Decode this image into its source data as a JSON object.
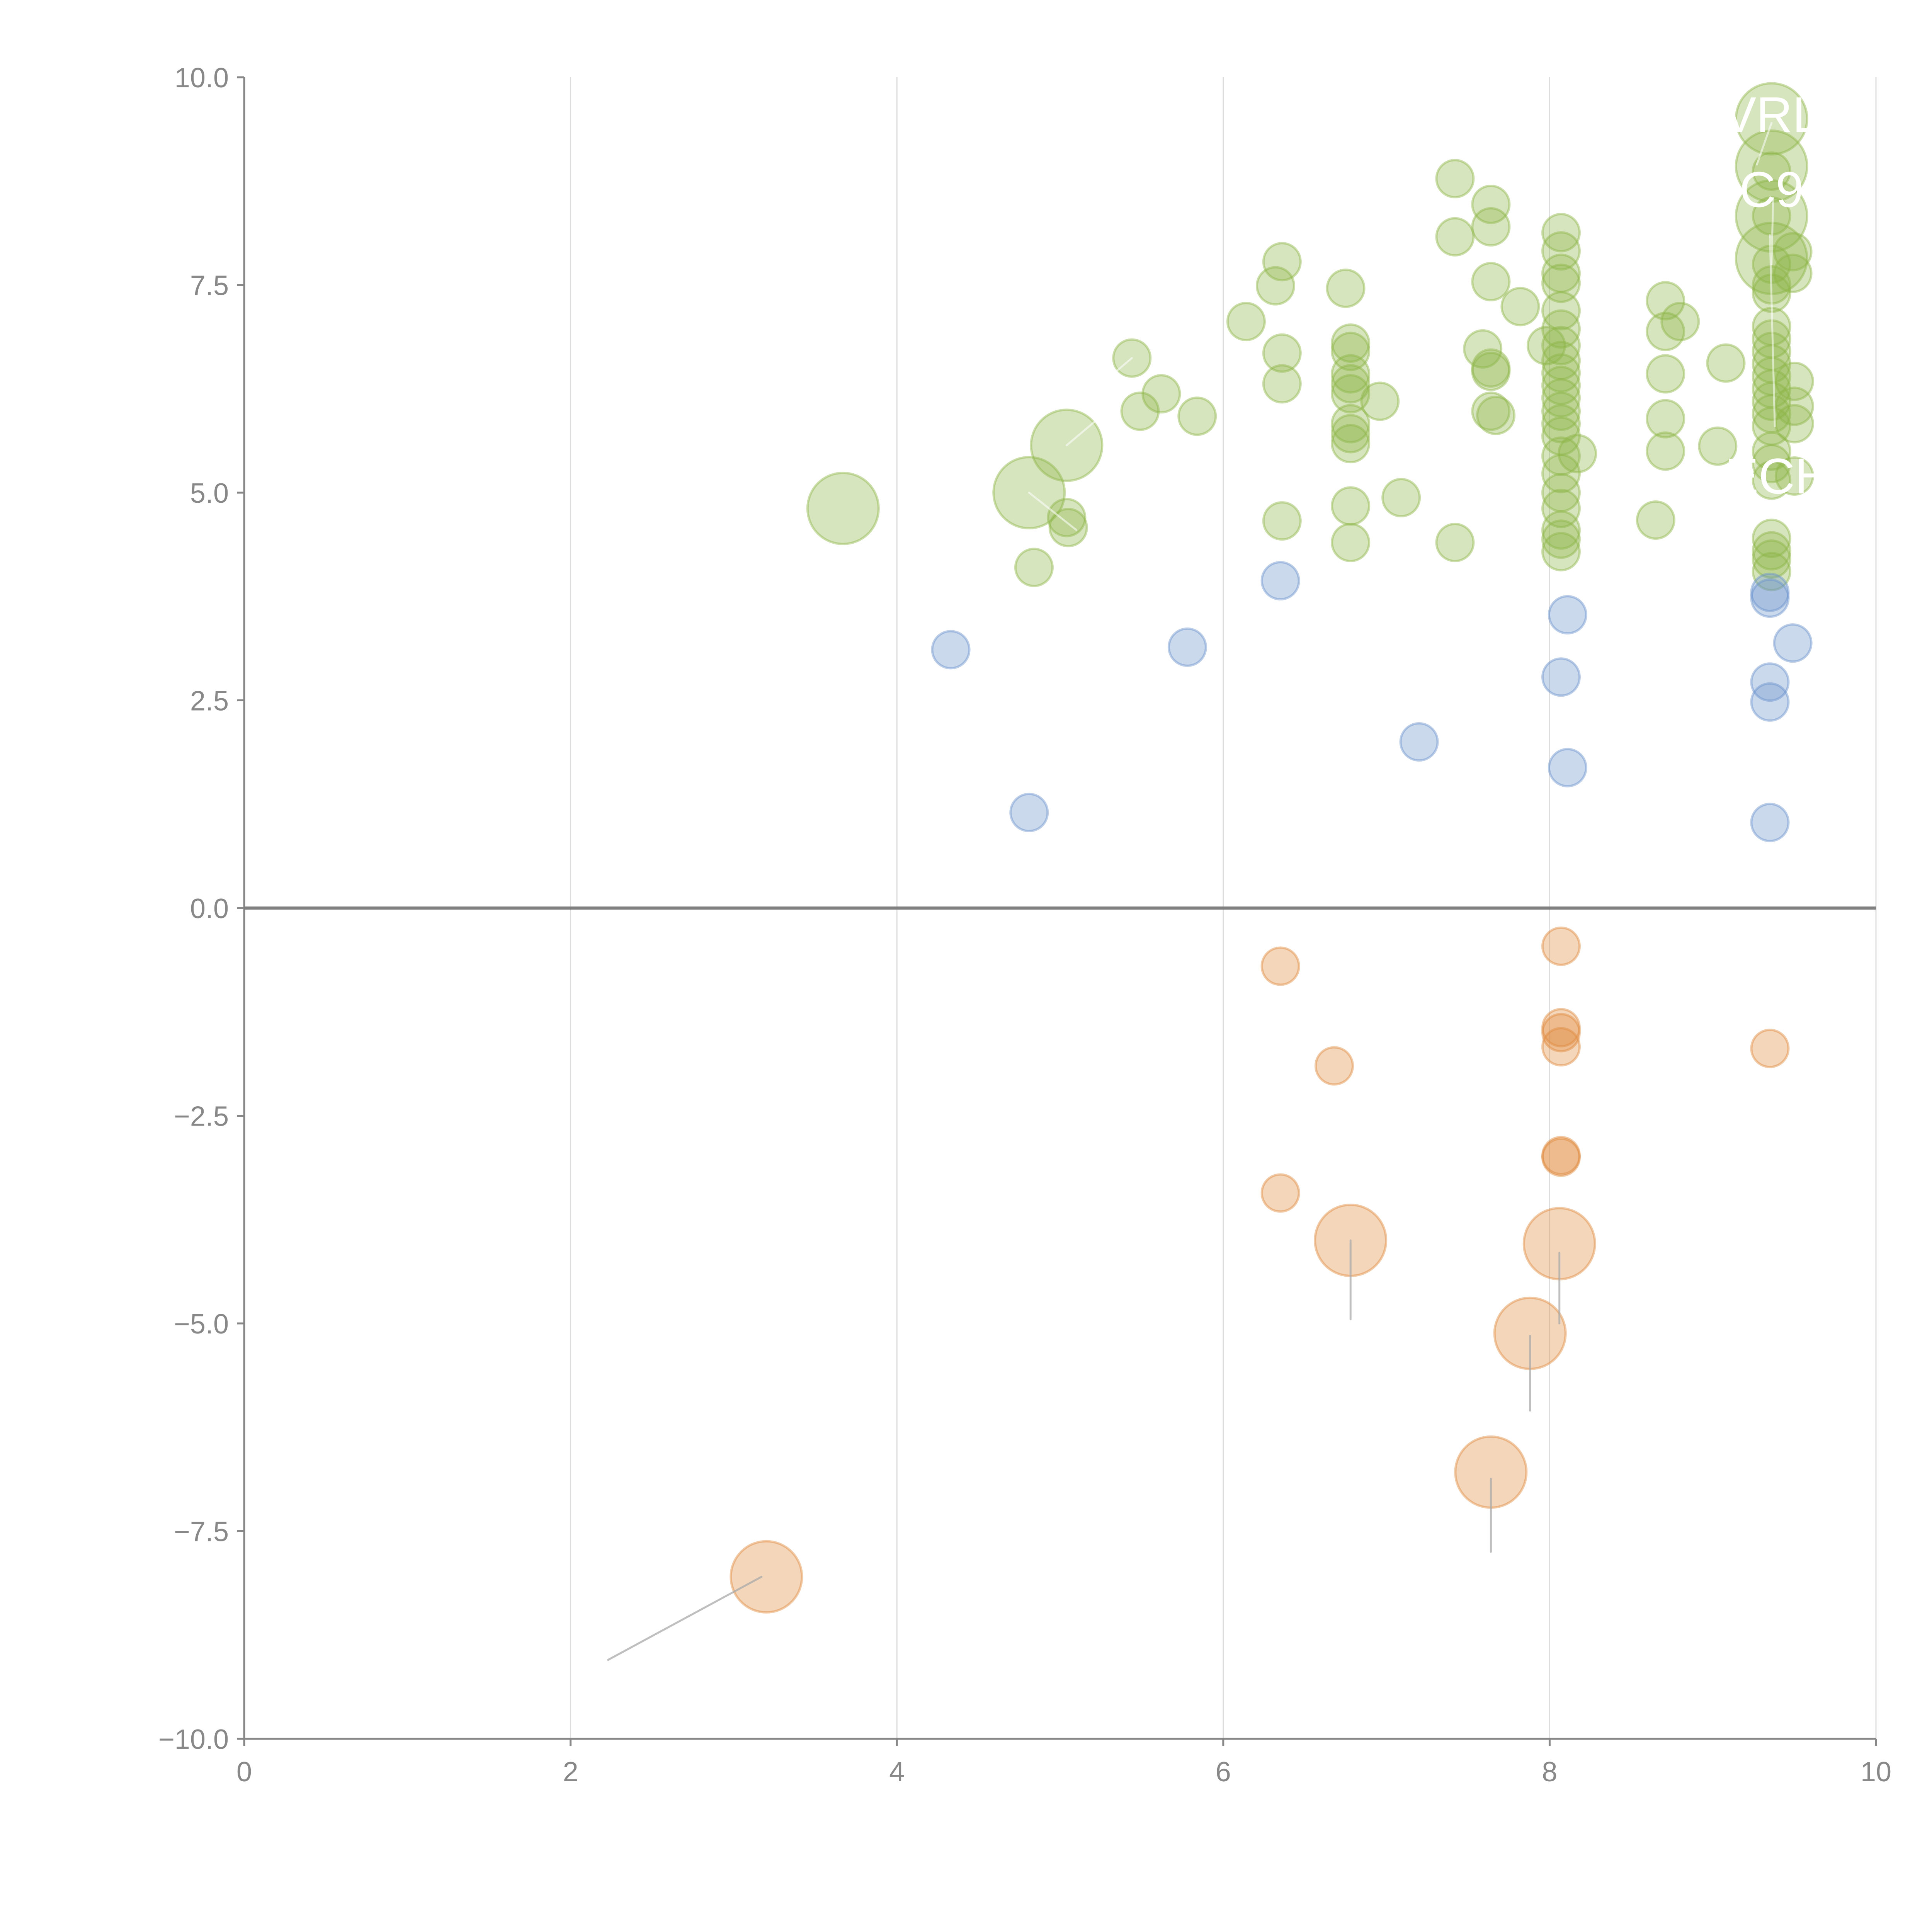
{
  "chart_data": {
    "type": "scatter",
    "subtype": "bubble",
    "title": "",
    "xlabel": "",
    "ylabel": "",
    "xlim": [
      0,
      10
    ],
    "ylim": [
      -10,
      10
    ],
    "x_ticks": [
      "0",
      "2",
      "4",
      "6",
      "8",
      "10"
    ],
    "x_tick_values": [
      0,
      2,
      4,
      6,
      8,
      10
    ],
    "y_ticks": [
      "10.0",
      "7.5",
      "5.0",
      "2.5",
      "0.0",
      "−2.5",
      "−5.0",
      "−7.5",
      "−10.0"
    ],
    "y_tick_values": [
      10,
      7.5,
      5,
      2.5,
      0,
      -2.5,
      -5,
      -7.5,
      -10
    ],
    "grid": {
      "vertical": true,
      "horizontal": false
    },
    "zero_line": true,
    "legend": "none",
    "colors": {
      "green": "#8DB548",
      "blue": "#6A93CC",
      "orange": "#E08A3C",
      "axis": "#888888",
      "grid": "#DDDDDD",
      "zero_line": "#808080",
      "leader_gray": "#AAAAAA",
      "label": "#FFFFFF"
    },
    "series": [
      {
        "name": "green",
        "color": "#8DB548",
        "points": [
          {
            "x": 3.67,
            "y": 4.81,
            "size": 3
          },
          {
            "x": 4.81,
            "y": 5.0,
            "size": 3
          },
          {
            "x": 5.04,
            "y": 5.57,
            "size": 3
          },
          {
            "x": 4.84,
            "y": 4.1,
            "size": 1
          },
          {
            "x": 5.04,
            "y": 4.7,
            "size": 1
          },
          {
            "x": 5.05,
            "y": 4.58,
            "size": 1
          },
          {
            "x": 5.44,
            "y": 6.62,
            "size": 1
          },
          {
            "x": 5.49,
            "y": 5.98,
            "size": 1
          },
          {
            "x": 5.62,
            "y": 6.19,
            "size": 1
          },
          {
            "x": 5.84,
            "y": 5.92,
            "size": 1
          },
          {
            "x": 6.14,
            "y": 7.06,
            "size": 1
          },
          {
            "x": 6.32,
            "y": 7.49,
            "size": 1
          },
          {
            "x": 6.36,
            "y": 7.78,
            "size": 1
          },
          {
            "x": 6.36,
            "y": 6.68,
            "size": 1
          },
          {
            "x": 6.36,
            "y": 6.31,
            "size": 1
          },
          {
            "x": 6.36,
            "y": 4.66,
            "size": 1
          },
          {
            "x": 6.75,
            "y": 7.46,
            "size": 1
          },
          {
            "x": 6.78,
            "y": 6.8,
            "size": 1
          },
          {
            "x": 6.78,
            "y": 6.7,
            "size": 1
          },
          {
            "x": 6.78,
            "y": 6.43,
            "size": 1
          },
          {
            "x": 6.78,
            "y": 6.31,
            "size": 1
          },
          {
            "x": 6.78,
            "y": 6.19,
            "size": 1
          },
          {
            "x": 6.78,
            "y": 5.83,
            "size": 1
          },
          {
            "x": 6.78,
            "y": 5.71,
            "size": 1
          },
          {
            "x": 6.78,
            "y": 5.59,
            "size": 1
          },
          {
            "x": 6.78,
            "y": 4.84,
            "size": 1
          },
          {
            "x": 6.78,
            "y": 4.4,
            "size": 1
          },
          {
            "x": 6.96,
            "y": 6.1,
            "size": 1
          },
          {
            "x": 7.09,
            "y": 4.94,
            "size": 1
          },
          {
            "x": 7.42,
            "y": 8.78,
            "size": 1
          },
          {
            "x": 7.42,
            "y": 8.08,
            "size": 1
          },
          {
            "x": 7.42,
            "y": 4.4,
            "size": 1
          },
          {
            "x": 7.64,
            "y": 8.47,
            "size": 1
          },
          {
            "x": 7.64,
            "y": 8.2,
            "size": 1
          },
          {
            "x": 7.64,
            "y": 7.54,
            "size": 1
          },
          {
            "x": 7.59,
            "y": 6.73,
            "size": 1
          },
          {
            "x": 7.64,
            "y": 6.5,
            "size": 1
          },
          {
            "x": 7.64,
            "y": 6.46,
            "size": 1
          },
          {
            "x": 7.64,
            "y": 5.98,
            "size": 1
          },
          {
            "x": 7.67,
            "y": 5.93,
            "size": 1
          },
          {
            "x": 7.82,
            "y": 7.24,
            "size": 1
          },
          {
            "x": 7.98,
            "y": 6.77,
            "size": 1
          },
          {
            "x": 8.07,
            "y": 8.13,
            "size": 1
          },
          {
            "x": 8.07,
            "y": 7.91,
            "size": 1
          },
          {
            "x": 8.07,
            "y": 7.64,
            "size": 1
          },
          {
            "x": 8.07,
            "y": 7.52,
            "size": 1
          },
          {
            "x": 8.07,
            "y": 7.19,
            "size": 1
          },
          {
            "x": 8.07,
            "y": 6.97,
            "size": 1
          },
          {
            "x": 8.07,
            "y": 6.77,
            "size": 1
          },
          {
            "x": 8.07,
            "y": 6.59,
            "size": 1
          },
          {
            "x": 8.07,
            "y": 6.44,
            "size": 1
          },
          {
            "x": 8.07,
            "y": 6.29,
            "size": 1
          },
          {
            "x": 8.07,
            "y": 6.14,
            "size": 1
          },
          {
            "x": 8.07,
            "y": 5.98,
            "size": 1
          },
          {
            "x": 8.07,
            "y": 5.83,
            "size": 1
          },
          {
            "x": 8.07,
            "y": 5.68,
            "size": 1
          },
          {
            "x": 8.07,
            "y": 5.44,
            "size": 1
          },
          {
            "x": 8.07,
            "y": 5.23,
            "size": 1
          },
          {
            "x": 8.07,
            "y": 5.0,
            "size": 1
          },
          {
            "x": 8.07,
            "y": 4.81,
            "size": 1
          },
          {
            "x": 8.07,
            "y": 4.55,
            "size": 1
          },
          {
            "x": 8.07,
            "y": 4.44,
            "size": 1
          },
          {
            "x": 8.07,
            "y": 4.29,
            "size": 1
          },
          {
            "x": 8.17,
            "y": 5.47,
            "size": 1
          },
          {
            "x": 8.65,
            "y": 4.67,
            "size": 1
          },
          {
            "x": 8.71,
            "y": 7.31,
            "size": 1
          },
          {
            "x": 8.71,
            "y": 6.94,
            "size": 1
          },
          {
            "x": 8.71,
            "y": 6.43,
            "size": 1
          },
          {
            "x": 8.71,
            "y": 5.89,
            "size": 1
          },
          {
            "x": 8.71,
            "y": 5.5,
            "size": 1
          },
          {
            "x": 8.8,
            "y": 7.06,
            "size": 1
          },
          {
            "x": 9.03,
            "y": 5.56,
            "size": 1
          },
          {
            "x": 9.08,
            "y": 6.56,
            "size": 1
          },
          {
            "x": 9.36,
            "y": 9.5,
            "size": 3
          },
          {
            "x": 9.36,
            "y": 8.93,
            "size": 3
          },
          {
            "x": 9.36,
            "y": 8.33,
            "size": 3
          },
          {
            "x": 9.36,
            "y": 7.82,
            "size": 3
          },
          {
            "x": 9.36,
            "y": 8.87,
            "size": 1
          },
          {
            "x": 9.36,
            "y": 8.33,
            "size": 1
          },
          {
            "x": 9.36,
            "y": 7.75,
            "size": 1
          },
          {
            "x": 9.36,
            "y": 7.5,
            "size": 1
          },
          {
            "x": 9.36,
            "y": 7.4,
            "size": 1
          },
          {
            "x": 9.36,
            "y": 7.0,
            "size": 1
          },
          {
            "x": 9.36,
            "y": 6.85,
            "size": 1
          },
          {
            "x": 9.36,
            "y": 6.7,
            "size": 1
          },
          {
            "x": 9.36,
            "y": 6.55,
            "size": 1
          },
          {
            "x": 9.36,
            "y": 6.4,
            "size": 1
          },
          {
            "x": 9.36,
            "y": 6.25,
            "size": 1
          },
          {
            "x": 9.36,
            "y": 6.1,
            "size": 1
          },
          {
            "x": 9.36,
            "y": 5.95,
            "size": 1
          },
          {
            "x": 9.36,
            "y": 5.8,
            "size": 1
          },
          {
            "x": 9.36,
            "y": 5.5,
            "size": 1
          },
          {
            "x": 9.36,
            "y": 5.35,
            "size": 1
          },
          {
            "x": 9.36,
            "y": 5.15,
            "size": 1
          },
          {
            "x": 9.36,
            "y": 4.45,
            "size": 1
          },
          {
            "x": 9.36,
            "y": 4.3,
            "size": 1
          },
          {
            "x": 9.36,
            "y": 4.2,
            "size": 1
          },
          {
            "x": 9.36,
            "y": 4.05,
            "size": 1
          },
          {
            "x": 9.49,
            "y": 7.9,
            "size": 1
          },
          {
            "x": 9.49,
            "y": 7.64,
            "size": 1
          },
          {
            "x": 9.5,
            "y": 6.34,
            "size": 1
          },
          {
            "x": 9.5,
            "y": 6.04,
            "size": 1
          },
          {
            "x": 9.5,
            "y": 5.83,
            "size": 1
          },
          {
            "x": 9.5,
            "y": 5.2,
            "size": 1
          }
        ]
      },
      {
        "name": "blue",
        "color": "#6A93CC",
        "points": [
          {
            "x": 4.33,
            "y": 3.11,
            "size": 1
          },
          {
            "x": 4.81,
            "y": 1.15,
            "size": 1
          },
          {
            "x": 5.78,
            "y": 3.14,
            "size": 1
          },
          {
            "x": 6.35,
            "y": 3.94,
            "size": 1
          },
          {
            "x": 7.2,
            "y": 2.0,
            "size": 1
          },
          {
            "x": 8.11,
            "y": 3.53,
            "size": 1
          },
          {
            "x": 8.07,
            "y": 2.78,
            "size": 1
          },
          {
            "x": 8.11,
            "y": 1.69,
            "size": 1
          },
          {
            "x": 9.35,
            "y": 3.8,
            "size": 1
          },
          {
            "x": 9.35,
            "y": 3.73,
            "size": 1
          },
          {
            "x": 9.49,
            "y": 3.19,
            "size": 1
          },
          {
            "x": 9.35,
            "y": 2.72,
            "size": 1
          },
          {
            "x": 9.35,
            "y": 2.48,
            "size": 1
          },
          {
            "x": 9.35,
            "y": 1.03,
            "size": 1
          }
        ]
      },
      {
        "name": "orange",
        "color": "#E08A3C",
        "points": [
          {
            "x": 6.35,
            "y": -0.7,
            "size": 1
          },
          {
            "x": 6.68,
            "y": -1.9,
            "size": 1
          },
          {
            "x": 6.35,
            "y": -3.43,
            "size": 1
          },
          {
            "x": 8.07,
            "y": -0.46,
            "size": 1
          },
          {
            "x": 8.07,
            "y": -1.44,
            "size": 1
          },
          {
            "x": 8.07,
            "y": -1.5,
            "size": 1
          },
          {
            "x": 8.07,
            "y": -1.67,
            "size": 1
          },
          {
            "x": 8.07,
            "y": -2.98,
            "size": 1
          },
          {
            "x": 8.07,
            "y": -3.0,
            "size": 1
          },
          {
            "x": 9.35,
            "y": -1.69,
            "size": 1
          },
          {
            "x": 6.78,
            "y": -4.0,
            "size": 3
          },
          {
            "x": 8.06,
            "y": -4.04,
            "size": 3
          },
          {
            "x": 7.88,
            "y": -5.12,
            "size": 3
          },
          {
            "x": 7.64,
            "y": -6.79,
            "size": 3
          },
          {
            "x": 3.2,
            "y": -8.05,
            "size": 3
          }
        ]
      }
    ],
    "leader_lines": [
      {
        "from": [
          5.44,
          6.62
        ],
        "to": [
          5.23,
          6.27
        ],
        "color": "white"
      },
      {
        "from": [
          5.04,
          5.57
        ],
        "to": [
          5.3,
          6.0
        ],
        "color": "white"
      },
      {
        "from": [
          4.81,
          5.0
        ],
        "to": [
          5.1,
          4.55
        ],
        "color": "white"
      },
      {
        "from": [
          9.36,
          9.45
        ],
        "to": [
          9.27,
          8.95
        ],
        "color": "white"
      },
      {
        "from": [
          9.37,
          8.55
        ],
        "to": [
          9.36,
          7.75
        ],
        "color": "white"
      },
      {
        "from": [
          9.35,
          8.1
        ],
        "to": [
          9.38,
          5.8
        ],
        "color": "white"
      },
      {
        "from": [
          6.78,
          -4.0
        ],
        "to": [
          6.78,
          -4.95
        ],
        "color": "gray"
      },
      {
        "from": [
          8.06,
          -4.15
        ],
        "to": [
          8.06,
          -5.0
        ],
        "color": "gray"
      },
      {
        "from": [
          7.88,
          -5.15
        ],
        "to": [
          7.88,
          -6.05
        ],
        "color": "gray"
      },
      {
        "from": [
          7.64,
          -6.87
        ],
        "to": [
          7.64,
          -7.75
        ],
        "color": "gray"
      },
      {
        "from": [
          3.17,
          -8.05
        ],
        "to": [
          2.23,
          -9.05
        ],
        "color": "gray"
      }
    ],
    "annotations": [
      {
        "text": "VRL",
        "x": 9.36,
        "y": 9.55
      },
      {
        "text": "C9",
        "x": 9.36,
        "y": 8.65
      },
      {
        "text": "ECH",
        "x": 9.4,
        "y": 5.2
      }
    ]
  }
}
